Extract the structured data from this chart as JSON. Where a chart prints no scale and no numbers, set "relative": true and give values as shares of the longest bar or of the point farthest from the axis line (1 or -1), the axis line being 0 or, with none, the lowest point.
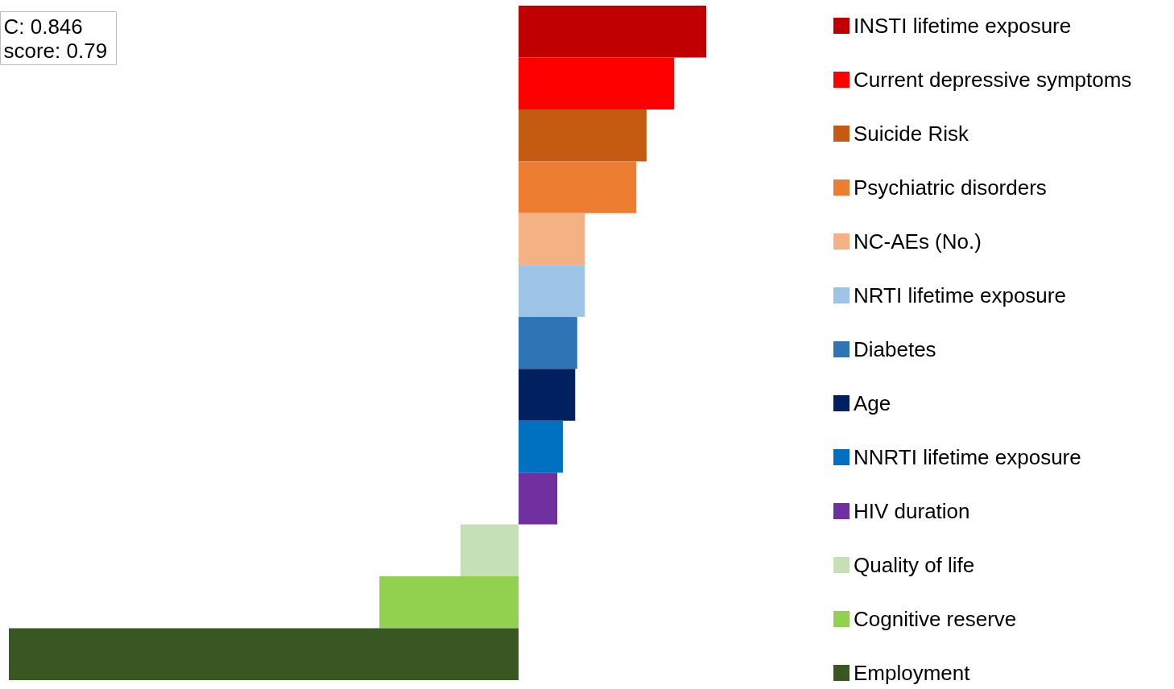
{
  "chart_data": {
    "type": "bar",
    "orientation": "horizontal",
    "relative": true,
    "stacked": true,
    "legend": "right",
    "annotations": [
      "C: 0.846",
      "score: 0.79"
    ],
    "categories": [
      null,
      null,
      null,
      null,
      null,
      null,
      null,
      null,
      null,
      null,
      null,
      null,
      null
    ],
    "series": [
      {
        "name": "INSTI lifetime exposure",
        "color": "#c00000",
        "values": [
          0.368,
          null,
          null,
          null,
          null,
          null,
          null,
          null,
          null,
          null,
          null,
          null,
          null
        ]
      },
      {
        "name": "Current depressive symptoms",
        "color": "#ff0000",
        "values": [
          null,
          0.305,
          null,
          null,
          null,
          null,
          null,
          null,
          null,
          null,
          null,
          null,
          null
        ]
      },
      {
        "name": "Suicide Risk",
        "color": "#c55a11",
        "values": [
          null,
          null,
          0.251,
          null,
          null,
          null,
          null,
          null,
          null,
          null,
          null,
          null,
          null
        ]
      },
      {
        "name": "Psychiatric disorders",
        "color": "#ed7d31",
        "values": [
          null,
          null,
          null,
          0.231,
          null,
          null,
          null,
          null,
          null,
          null,
          null,
          null,
          null
        ]
      },
      {
        "name": "NC-AEs (No.)",
        "color": "#f4b183",
        "values": [
          null,
          null,
          null,
          null,
          0.13,
          null,
          null,
          null,
          null,
          null,
          null,
          null,
          null
        ]
      },
      {
        "name": "NRTI lifetime exposure",
        "color": "#9dc3e6",
        "values": [
          null,
          null,
          null,
          null,
          null,
          0.13,
          null,
          null,
          null,
          null,
          null,
          null,
          null
        ]
      },
      {
        "name": "Diabetes",
        "color": "#2e75b6",
        "values": [
          null,
          null,
          null,
          null,
          null,
          null,
          0.115,
          null,
          null,
          null,
          null,
          null,
          null
        ]
      },
      {
        "name": "Age",
        "color": "#002060",
        "values": [
          null,
          null,
          null,
          null,
          null,
          null,
          null,
          0.111,
          null,
          null,
          null,
          null,
          null
        ]
      },
      {
        "name": "NNRTI lifetime exposure",
        "color": "#0070c0",
        "values": [
          null,
          null,
          null,
          null,
          null,
          null,
          null,
          null,
          0.087,
          null,
          null,
          null,
          null
        ]
      },
      {
        "name": "HIV duration",
        "color": "#7030a0",
        "values": [
          null,
          null,
          null,
          null,
          null,
          null,
          null,
          null,
          null,
          0.076,
          null,
          null,
          null
        ]
      },
      {
        "name": "Quality of life",
        "color": "#c5e0b4",
        "values": [
          null,
          null,
          null,
          null,
          null,
          null,
          null,
          null,
          null,
          null,
          -0.114,
          null,
          null
        ]
      },
      {
        "name": "Cognitive reserve",
        "color": "#92d050",
        "values": [
          null,
          null,
          null,
          null,
          null,
          null,
          null,
          null,
          null,
          null,
          null,
          -0.273,
          null
        ]
      },
      {
        "name": "Employment",
        "color": "#385723",
        "values": [
          null,
          null,
          null,
          null,
          null,
          null,
          null,
          null,
          null,
          null,
          null,
          null,
          -1
        ]
      }
    ]
  }
}
